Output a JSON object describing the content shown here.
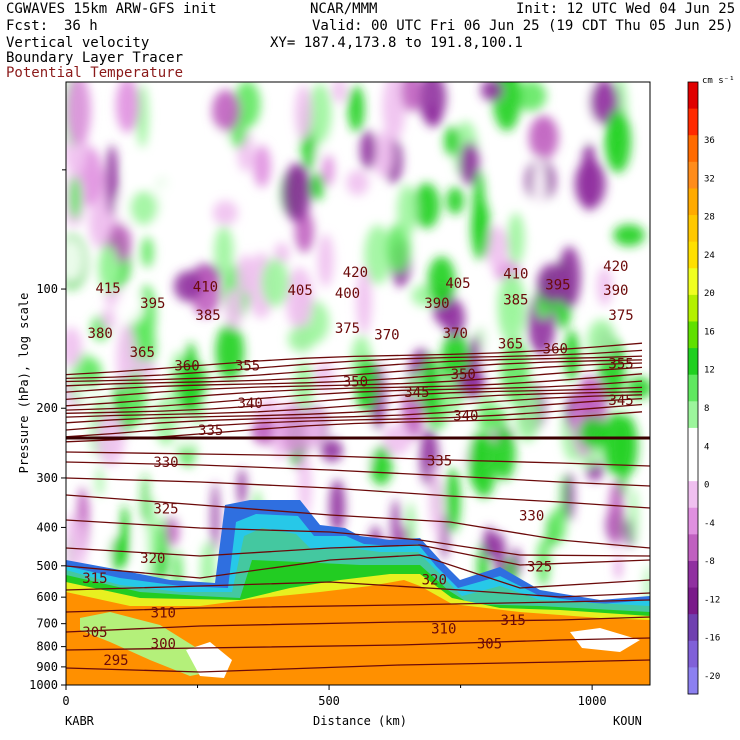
{
  "header": {
    "model": "CGWAVES 15km ARW-GFS init",
    "org": "NCAR/MMM",
    "init": "Init: 12 UTC Wed 04 Jun 25",
    "fcst_label": "Fcst:",
    "fcst_value": "36 h",
    "valid": "Valid: 00 UTC Fri 06 Jun 25 (19 CDT Thu 05 Jun 25)",
    "xy": "XY= 187.4,173.8 to 191.8,100.1",
    "field1": "Vertical velocity",
    "field2": "Boundary Layer Tracer",
    "field3": "Potential Temperature"
  },
  "colors": {
    "theta_contour": "#6b0a0a",
    "field3_text": "#8b1a1a"
  },
  "chart_data": {
    "type": "cross-section",
    "xlabel": "Distance (km)",
    "ylabel": "Pressure (hPa), log scale",
    "xlim": [
      0,
      1110
    ],
    "ylim": [
      1000,
      30
    ],
    "x_ticks": [
      "0",
      "500",
      "1000"
    ],
    "x_tick_values": [
      0,
      500,
      1000
    ],
    "y_ticks": [
      "100",
      "200",
      "300",
      "400",
      "500",
      "600",
      "700",
      "800",
      "900",
      "1000"
    ],
    "y_tick_values": [
      100,
      200,
      300,
      400,
      500,
      600,
      700,
      800,
      900,
      1000
    ],
    "left_endpoint": "KABR",
    "right_endpoint": "KOUN",
    "colorbar": {
      "units": "cm s⁻¹",
      "tick_labels": [
        "36",
        "32",
        "28",
        "24",
        "20",
        "16",
        "12",
        "8",
        "4",
        "0",
        "-4",
        "-8",
        "-12",
        "-16",
        "-20"
      ],
      "tick_values": [
        36,
        32,
        28,
        24,
        20,
        16,
        12,
        8,
        4,
        0,
        -4,
        -8,
        -12,
        -16,
        -20
      ],
      "colors": [
        "#e00000",
        "#ff2a00",
        "#ff6a00",
        "#ff8c1a",
        "#ffaa00",
        "#ffc800",
        "#ffe000",
        "#f0ff20",
        "#b4f000",
        "#60e000",
        "#20d020",
        "#60e860",
        "#9cf59c",
        "#ffffff",
        "#ffffff",
        "#f0c0f0",
        "#e090e0",
        "#c060c0",
        "#9030a0",
        "#7a1a8a",
        "#7040b0",
        "#8060d8",
        "#8c80f0"
      ]
    },
    "theta_contours": [
      {
        "label": "295",
        "x_km": 95,
        "p": 870
      },
      {
        "label": "300",
        "x_km": 185,
        "p": 790
      },
      {
        "label": "305",
        "x_km": 55,
        "p": 740
      },
      {
        "label": "305",
        "x_km": 805,
        "p": 790
      },
      {
        "label": "310",
        "x_km": 185,
        "p": 660
      },
      {
        "label": "310",
        "x_km": 718,
        "p": 725
      },
      {
        "label": "315",
        "x_km": 55,
        "p": 540
      },
      {
        "label": "315",
        "x_km": 850,
        "p": 690
      },
      {
        "label": "320",
        "x_km": 165,
        "p": 480
      },
      {
        "label": "320",
        "x_km": 700,
        "p": 545
      },
      {
        "label": "325",
        "x_km": 190,
        "p": 360
      },
      {
        "label": "325",
        "x_km": 900,
        "p": 505
      },
      {
        "label": "330",
        "x_km": 190,
        "p": 275
      },
      {
        "label": "330",
        "x_km": 885,
        "p": 375
      },
      {
        "label": "335",
        "x_km": 275,
        "p": 228
      },
      {
        "label": "335",
        "x_km": 710,
        "p": 273
      },
      {
        "label": "340",
        "x_km": 350,
        "p": 195
      },
      {
        "label": "340",
        "x_km": 760,
        "p": 210
      },
      {
        "label": "345",
        "x_km": 667,
        "p": 183
      },
      {
        "label": "345",
        "x_km": 1055,
        "p": 192
      },
      {
        "label": "350",
        "x_km": 550,
        "p": 172
      },
      {
        "label": "350",
        "x_km": 755,
        "p": 165
      },
      {
        "label": "355",
        "x_km": 345,
        "p": 157
      },
      {
        "label": "355",
        "x_km": 1055,
        "p": 155
      },
      {
        "label": "360",
        "x_km": 230,
        "p": 157
      },
      {
        "label": "360",
        "x_km": 930,
        "p": 142
      },
      {
        "label": "365",
        "x_km": 145,
        "p": 145
      },
      {
        "label": "365",
        "x_km": 845,
        "p": 138
      },
      {
        "label": "370",
        "x_km": 610,
        "p": 131
      },
      {
        "label": "370",
        "x_km": 740,
        "p": 130
      },
      {
        "label": "375",
        "x_km": 535,
        "p": 126
      },
      {
        "label": "375",
        "x_km": 1055,
        "p": 117
      },
      {
        "label": "380",
        "x_km": 65,
        "p": 130
      },
      {
        "label": "385",
        "x_km": 270,
        "p": 117
      },
      {
        "label": "385",
        "x_km": 855,
        "p": 107
      },
      {
        "label": "390",
        "x_km": 705,
        "p": 109
      },
      {
        "label": "390",
        "x_km": 1045,
        "p": 101
      },
      {
        "label": "395",
        "x_km": 165,
        "p": 109
      },
      {
        "label": "395",
        "x_km": 935,
        "p": 98
      },
      {
        "label": "400",
        "x_km": 535,
        "p": 103
      },
      {
        "label": "405",
        "x_km": 445,
        "p": 101
      },
      {
        "label": "405",
        "x_km": 745,
        "p": 97
      },
      {
        "label": "410",
        "x_km": 265,
        "p": 99
      },
      {
        "label": "410",
        "x_km": 855,
        "p": 92
      },
      {
        "label": "415",
        "x_km": 80,
        "p": 100
      },
      {
        "label": "420",
        "x_km": 550,
        "p": 91
      },
      {
        "label": "420",
        "x_km": 1045,
        "p": 88
      }
    ]
  }
}
